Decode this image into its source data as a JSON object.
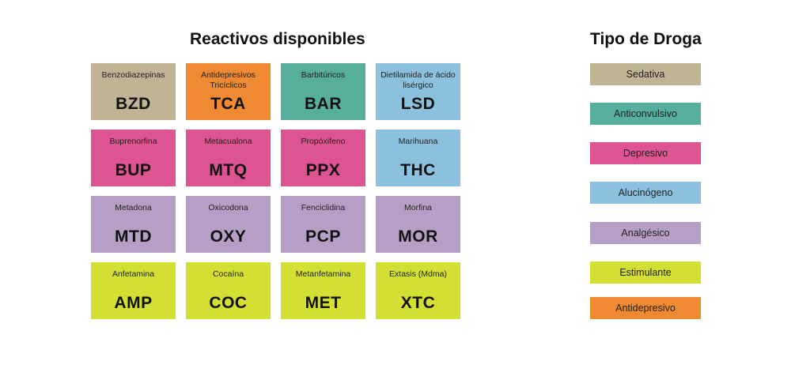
{
  "titles": {
    "grid": "Reactivos disponibles",
    "legend": "Tipo de Droga"
  },
  "colors": {
    "sedativa": "#c1b495",
    "anticonvulsivo": "#56ae9c",
    "depresivo": "#de5391",
    "alucinogeno": "#8cc1de",
    "analgesico": "#b69fc6",
    "estimulante": "#d3df32",
    "antidepresivo": "#ef8a32"
  },
  "cells": [
    {
      "name": "Benzodiazepinas",
      "code": "BZD",
      "type": "sedativa"
    },
    {
      "name": "Antidepresivos Tricíclicos",
      "code": "TCA",
      "type": "antidepresivo"
    },
    {
      "name": "Barbitúricos",
      "code": "BAR",
      "type": "anticonvulsivo"
    },
    {
      "name": "Dietilamida de ácido lisérgico",
      "code": "LSD",
      "type": "alucinogeno"
    },
    {
      "name": "Buprenorfina",
      "code": "BUP",
      "type": "depresivo"
    },
    {
      "name": "Metacualona",
      "code": "MTQ",
      "type": "depresivo"
    },
    {
      "name": "Propóxifeno",
      "code": "PPX",
      "type": "depresivo"
    },
    {
      "name": "Marihuana",
      "code": "THC",
      "type": "alucinogeno"
    },
    {
      "name": "Metadona",
      "code": "MTD",
      "type": "analgesico"
    },
    {
      "name": "Oxicodona",
      "code": "OXY",
      "type": "analgesico"
    },
    {
      "name": "Fenciclidina",
      "code": "PCP",
      "type": "analgesico"
    },
    {
      "name": "Morfina",
      "code": "MOR",
      "type": "analgesico"
    },
    {
      "name": "Anfetamina",
      "code": "AMP",
      "type": "estimulante"
    },
    {
      "name": "Cocaína",
      "code": "COC",
      "type": "estimulante"
    },
    {
      "name": "Metanfetamina",
      "code": "MET",
      "type": "estimulante"
    },
    {
      "name": "Extasis (Mdma)",
      "code": "XTC",
      "type": "estimulante"
    }
  ],
  "legend": [
    {
      "label": "Sedativa",
      "type": "sedativa"
    },
    {
      "label": "Anticonvulsivo",
      "type": "anticonvulsivo"
    },
    {
      "label": "Depresivo",
      "type": "depresivo"
    },
    {
      "label": "Alucinógeno",
      "type": "alucinogeno"
    },
    {
      "label": "Analgésico",
      "type": "analgesico"
    },
    {
      "label": "Estimulante",
      "type": "estimulante"
    },
    {
      "label": "Antidepresivo",
      "type": "antidepresivo"
    }
  ]
}
